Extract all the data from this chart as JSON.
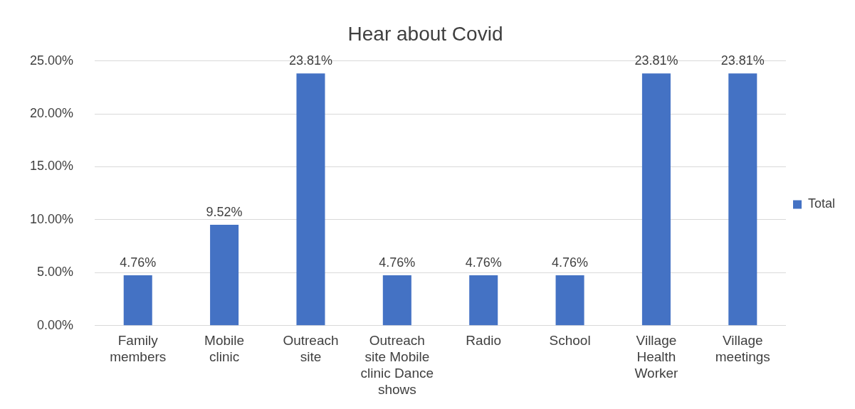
{
  "chart_data": {
    "type": "bar",
    "title": "Hear about Covid",
    "categories": [
      "Family members",
      "Mobile clinic",
      "Outreach site",
      "Outreach site Mobile clinic Dance shows",
      "Radio",
      "School",
      "Village Health Worker",
      "Village meetings"
    ],
    "series": [
      {
        "name": "Total",
        "color": "#4472c4",
        "values": [
          4.76,
          9.52,
          23.81,
          4.76,
          4.76,
          4.76,
          23.81,
          23.81
        ],
        "value_labels": [
          "4.76%",
          "9.52%",
          "23.81%",
          "4.76%",
          "4.76%",
          "4.76%",
          "23.81%",
          "23.81%"
        ]
      }
    ],
    "ylim": [
      0,
      25
    ],
    "yticks": [
      {
        "value": 0,
        "label": "0.00%"
      },
      {
        "value": 5,
        "label": "5.00%"
      },
      {
        "value": 10,
        "label": "10.00%"
      },
      {
        "value": 15,
        "label": "15.00%"
      },
      {
        "value": 20,
        "label": "20.00%"
      },
      {
        "value": 25,
        "label": "25.00%"
      }
    ],
    "grid": "y",
    "legend": "right"
  }
}
